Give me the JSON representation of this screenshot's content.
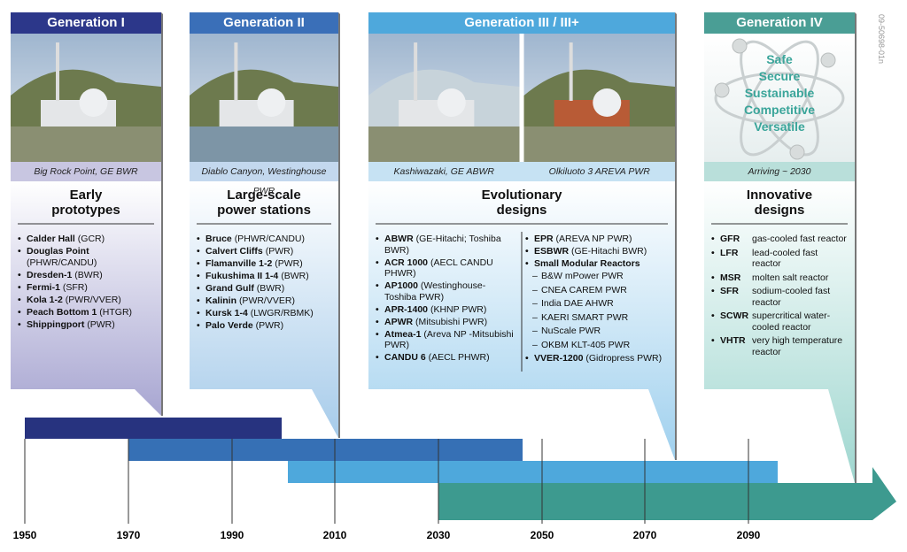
{
  "generations": [
    {
      "title": "Generation I",
      "captions": [
        "Big Rock Point, GE BWR"
      ],
      "heading": [
        "Early",
        "prototypes"
      ],
      "columns": [
        [
          {
            "name": "Calder Hall",
            "detail": "(GCR)"
          },
          {
            "name": "Douglas Point",
            "detail": "(PHWR/CANDU)"
          },
          {
            "name": "Dresden-1",
            "detail": "(BWR)"
          },
          {
            "name": "Fermi-1",
            "detail": "(SFR)"
          },
          {
            "name": "Kola 1-2",
            "detail": "(PWR/VVER)"
          },
          {
            "name": "Peach Bottom 1",
            "detail": "(HTGR)"
          },
          {
            "name": "Shippingport",
            "detail": "(PWR)"
          }
        ]
      ]
    },
    {
      "title": "Generation II",
      "captions": [
        "Diablo Canyon, Westinghouse PWR"
      ],
      "heading": [
        "Large-scale",
        "power stations"
      ],
      "columns": [
        [
          {
            "name": "Bruce",
            "detail": "(PHWR/CANDU)"
          },
          {
            "name": "Calvert Cliffs",
            "detail": "(PWR)"
          },
          {
            "name": "Flamanville 1-2",
            "detail": "(PWR)"
          },
          {
            "name": "Fukushima II 1-4",
            "detail": "(BWR)"
          },
          {
            "name": "Grand Gulf",
            "detail": "(BWR)"
          },
          {
            "name": "Kalinin",
            "detail": "(PWR/VVER)"
          },
          {
            "name": "Kursk 1-4",
            "detail": "(LWGR/RBMK)"
          },
          {
            "name": "Palo Verde",
            "detail": "(PWR)"
          }
        ]
      ]
    },
    {
      "title": "Generation III / III+",
      "captions": [
        "Kashiwazaki, GE ABWR",
        "Olkiluoto 3 AREVA PWR"
      ],
      "heading": [
        "Evolutionary",
        "designs"
      ],
      "columns": [
        [
          {
            "name": "ABWR",
            "detail": "(GE-Hitachi; Toshiba BWR)"
          },
          {
            "name": "ACR 1000",
            "detail": "(AECL CANDU PHWR)"
          },
          {
            "name": "AP1000",
            "detail": "(Westinghouse-Toshiba PWR)"
          },
          {
            "name": "APR-1400",
            "detail": "(KHNP PWR)"
          },
          {
            "name": "APWR",
            "detail": "(Mitsubishi PWR)"
          },
          {
            "name": "Atmea-1",
            "detail": "(Areva NP -Mitsubishi PWR)"
          },
          {
            "name": "CANDU 6",
            "detail": "(AECL PHWR)"
          }
        ],
        [
          {
            "name": "EPR",
            "detail": "(AREVA NP PWR)"
          },
          {
            "name": "ESBWR",
            "detail": "(GE-Hitachi BWR)"
          },
          {
            "name": "Small Modular Reactors"
          },
          {
            "sub": "B&W mPower PWR"
          },
          {
            "sub": "CNEA CAREM PWR"
          },
          {
            "sub": "India DAE AHWR"
          },
          {
            "sub": "KAERI SMART PWR"
          },
          {
            "sub": "NuScale PWR"
          },
          {
            "sub": "OKBM KLT-405 PWR"
          },
          {
            "name": "VVER-1200",
            "detail": "(Gidropress PWR)"
          }
        ]
      ]
    },
    {
      "title": "Generation IV",
      "captions": [
        "Arriving ~ 2030"
      ],
      "heading": [
        "Innovative",
        "designs"
      ],
      "goals": [
        "Safe",
        "Secure",
        "Sustainable",
        "Competitive",
        "Versatile"
      ],
      "columns": [
        [
          {
            "code": "GFR",
            "desc": "gas-cooled fast reactor"
          },
          {
            "code": "LFR",
            "desc": "lead-cooled fast reactor"
          },
          {
            "code": "MSR",
            "desc": "molten salt reactor"
          },
          {
            "code": "SFR",
            "desc": "sodium-cooled fast reactor"
          },
          {
            "code": "SCWR",
            "desc": "supercritical water-cooled reactor"
          },
          {
            "code": "VHTR",
            "desc": "very high temperature reactor"
          }
        ]
      ]
    }
  ],
  "timeline": {
    "years": [
      "1950",
      "1970",
      "1990",
      "2010",
      "2030",
      "2050",
      "2070",
      "2090"
    ]
  },
  "figure_id": "09-50698-01n"
}
